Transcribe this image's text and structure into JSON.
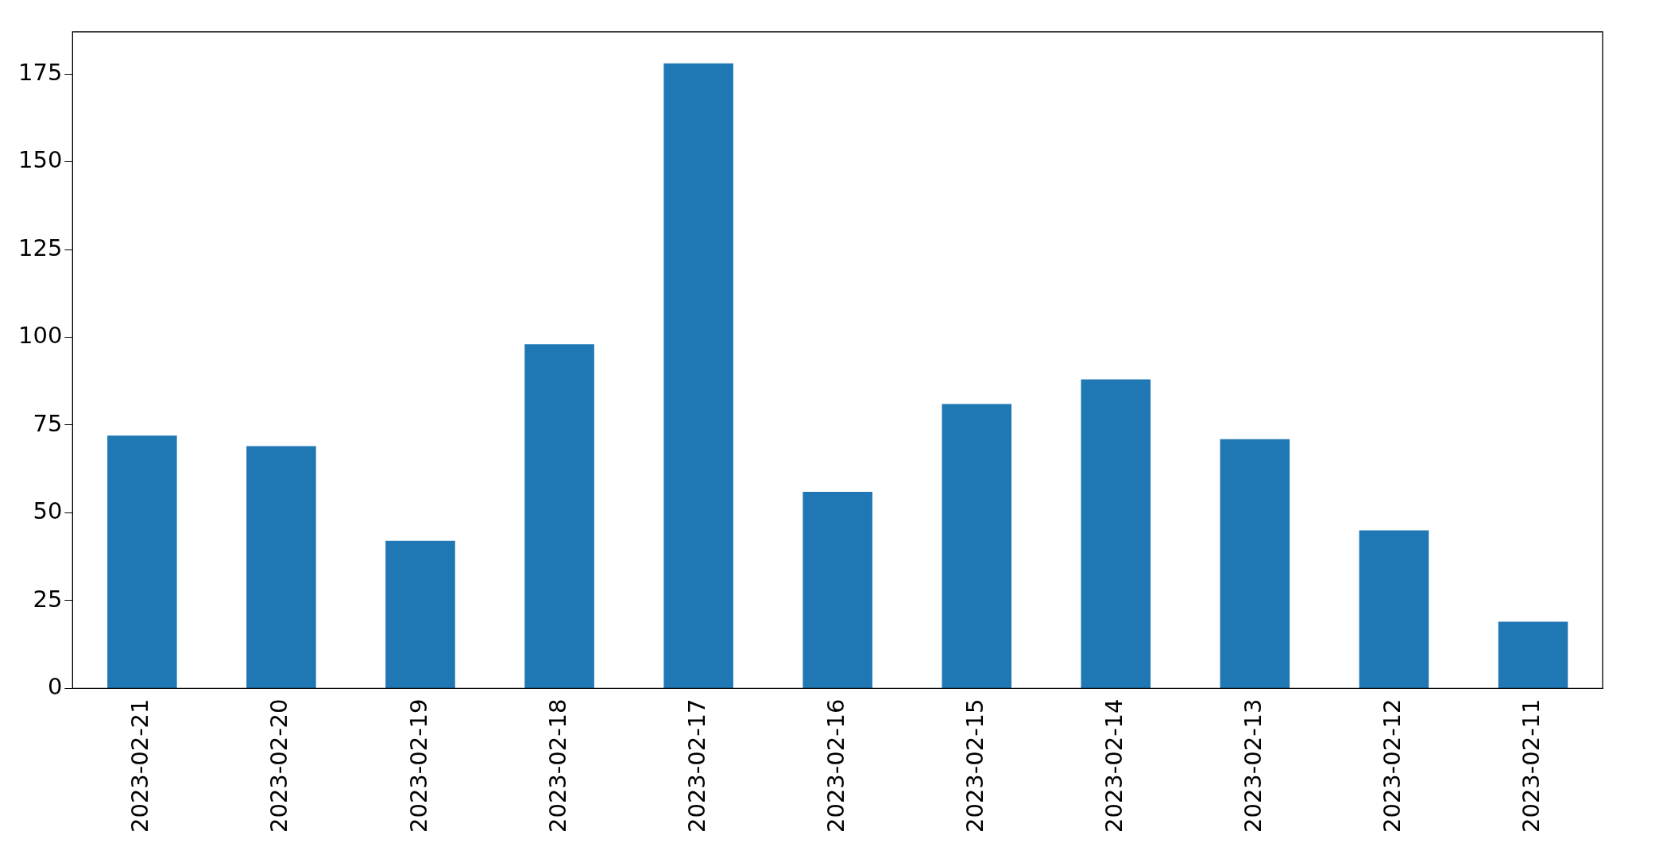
{
  "chart_data": {
    "type": "bar",
    "categories": [
      "2023-02-21",
      "2023-02-20",
      "2023-02-19",
      "2023-02-18",
      "2023-02-17",
      "2023-02-16",
      "2023-02-15",
      "2023-02-14",
      "2023-02-13",
      "2023-02-12",
      "2023-02-11"
    ],
    "values": [
      72,
      69,
      42,
      98,
      178,
      56,
      81,
      88,
      71,
      45,
      19
    ],
    "color": "#1f77b4",
    "ylim": [
      0,
      187
    ],
    "yticks": [
      0,
      25,
      50,
      75,
      100,
      125,
      150,
      175
    ],
    "grid": false,
    "legend": false
  }
}
